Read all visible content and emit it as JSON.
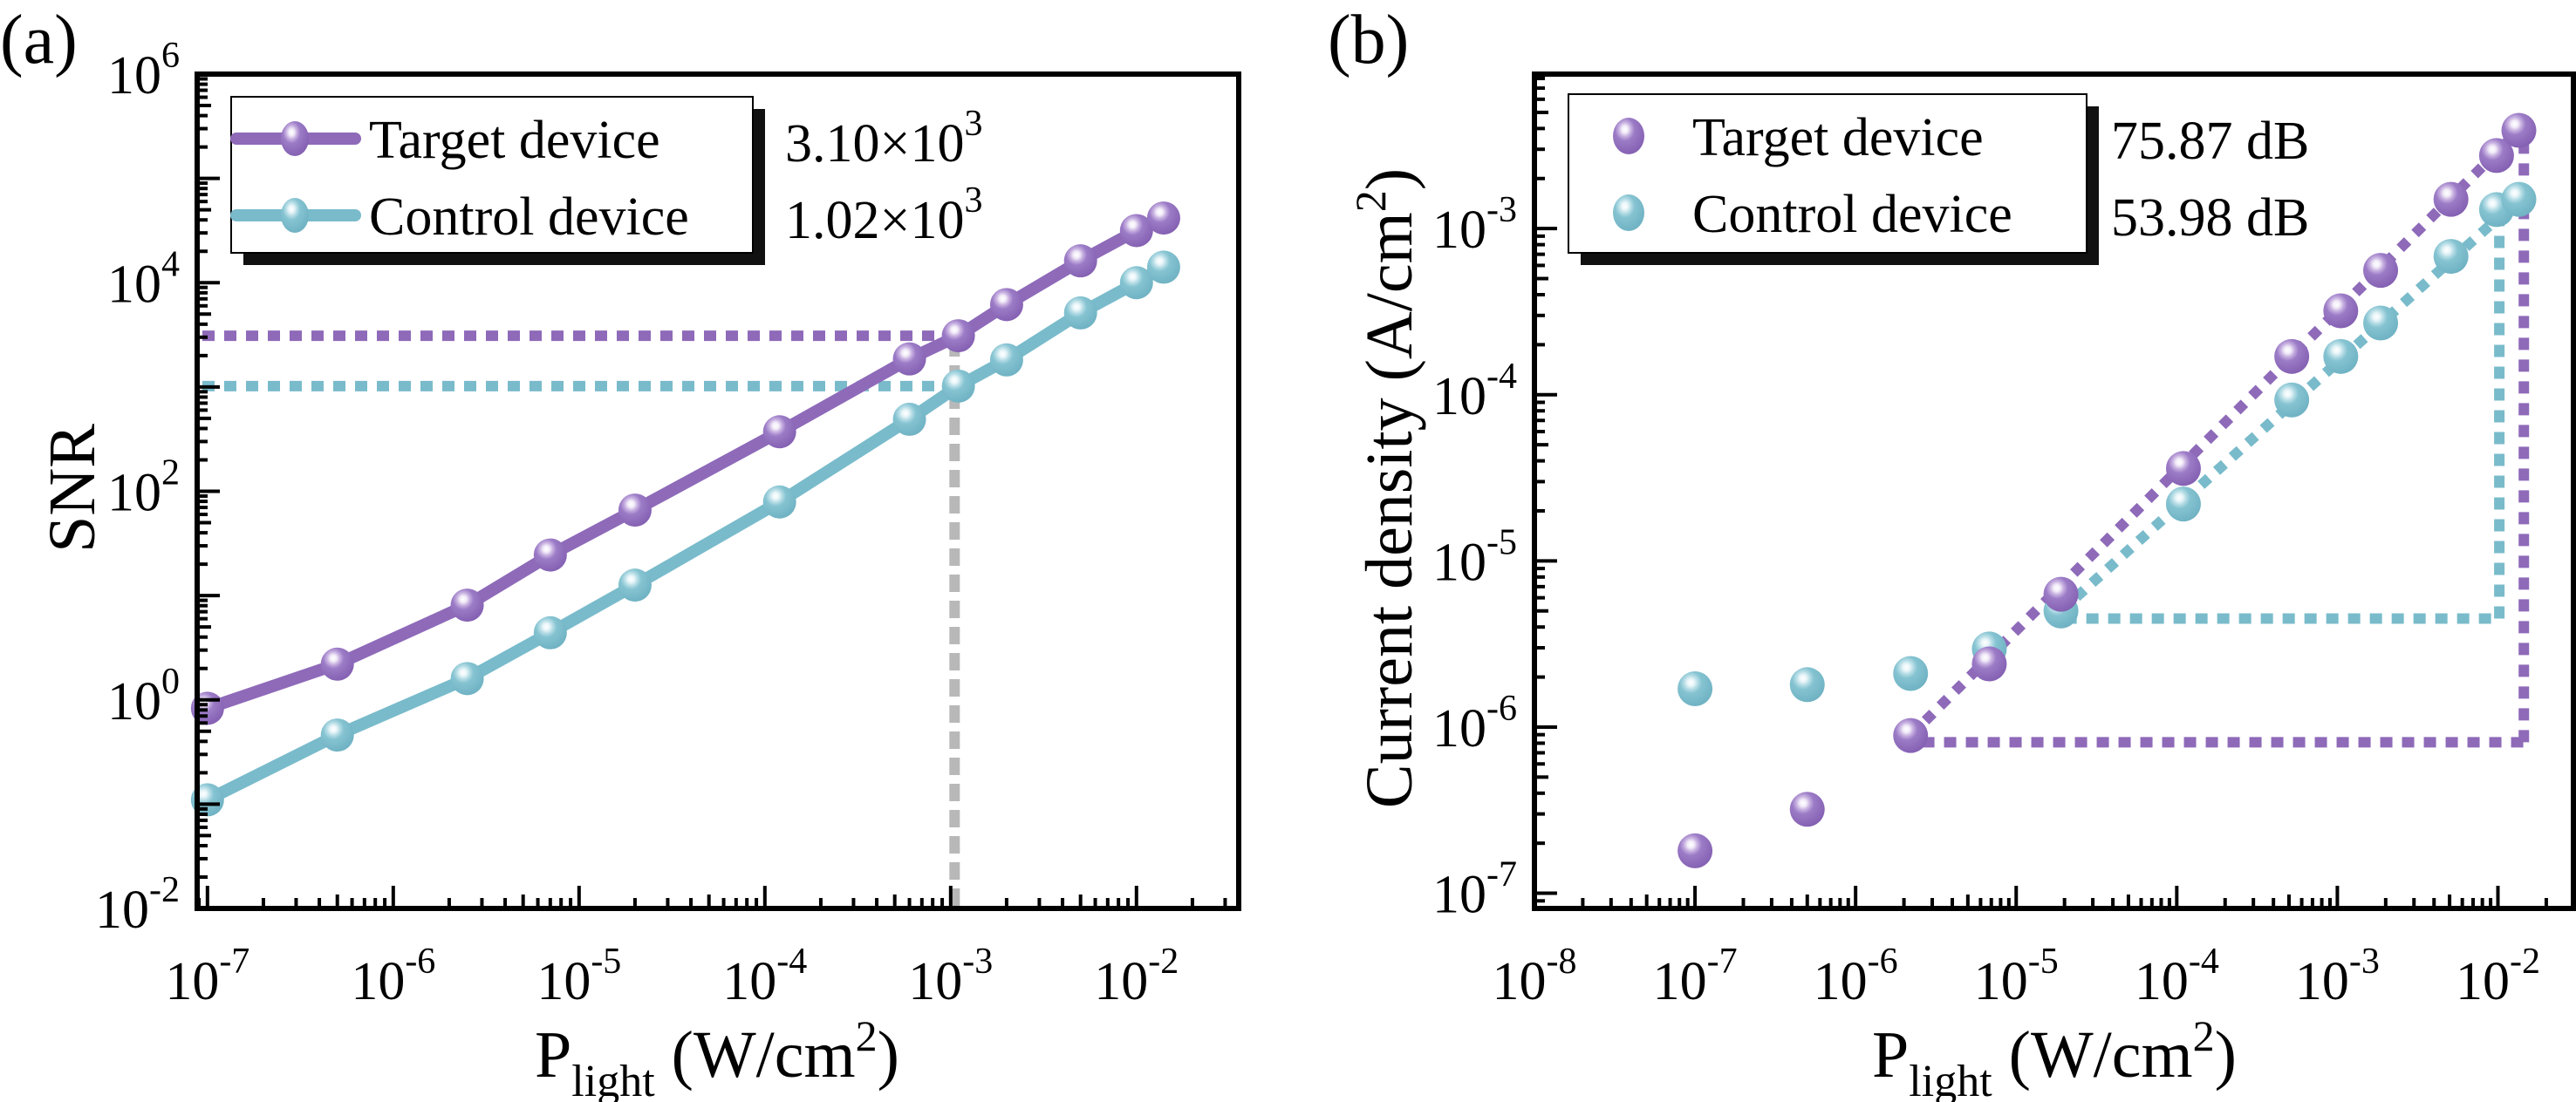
{
  "figure": {
    "panels": [
      {
        "label": "(a)"
      },
      {
        "label": "(b)"
      }
    ]
  },
  "colors": {
    "target": "#8E6AB9",
    "control": "#79BBCB",
    "guide_gray": "#B8B8B8",
    "axis": "#000000"
  },
  "chart_data": [
    {
      "id": "a",
      "panel_label": "(a)",
      "type": "line",
      "title": "",
      "xlabel": "P_light (W/cm^2)",
      "xlabel_main": "P",
      "xlabel_sub": "light",
      "xlabel_unit": " (W/cm",
      "xlabel_unit_sup": "2",
      "xlabel_close": ")",
      "ylabel": "SNR",
      "xscale": "log",
      "yscale": "log",
      "xlim": [
        8.8e-08,
        0.0355
      ],
      "ylim": [
        0.01,
        1000000
      ],
      "x_ticks": [
        {
          "base": "10",
          "exp": "-7",
          "value": 1e-07
        },
        {
          "base": "10",
          "exp": "-6",
          "value": 1e-06
        },
        {
          "base": "10",
          "exp": "-5",
          "value": 1e-05
        },
        {
          "base": "10",
          "exp": "-4",
          "value": 0.0001
        },
        {
          "base": "10",
          "exp": "-3",
          "value": 0.001
        },
        {
          "base": "10",
          "exp": "-2",
          "value": 0.01
        }
      ],
      "y_ticks": [
        {
          "base": "10",
          "exp": "6",
          "value": 1000000.0
        },
        {
          "base": "10",
          "exp": "4",
          "value": 10000.0
        },
        {
          "base": "10",
          "exp": "2",
          "value": 100.0
        },
        {
          "base": "10",
          "exp": "0",
          "value": 1
        },
        {
          "base": "10",
          "exp": "-2",
          "value": 0.01
        }
      ],
      "grid": false,
      "legend": {
        "placement": "top-left",
        "entries": [
          {
            "name": "Target device",
            "style": "line-marker",
            "color_key": "target",
            "annotation": "3.10×10",
            "annotation_sup": "3"
          },
          {
            "name": "Control device",
            "style": "line-marker",
            "color_key": "control",
            "annotation": "1.02×10",
            "annotation_sup": "3"
          }
        ]
      },
      "x": [
        1e-07,
        5e-07,
        2.5e-06,
        7e-06,
        2e-05,
        0.00012,
        0.0006,
        0.0011,
        0.002,
        0.005,
        0.01,
        0.014
      ],
      "series": [
        {
          "name": "Target device",
          "color_key": "target",
          "values": [
            0.83,
            2.2,
            8.1,
            24.5,
            66,
            372,
            1860,
            3100,
            6170,
            16200,
            31600,
            41700
          ]
        },
        {
          "name": "Control device",
          "color_key": "control",
          "values": [
            0.11,
            0.46,
            1.6,
            4.4,
            12.6,
            79,
            490,
            1020,
            1820,
            5130,
            10000,
            14100
          ]
        }
      ],
      "guides": [
        {
          "kind": "hline",
          "color_key": "target",
          "y": 3100,
          "x_from": 8.8e-08,
          "x_to": 0.0011
        },
        {
          "kind": "hline",
          "color_key": "control",
          "y": 1020,
          "x_from": 8.8e-08,
          "x_to": 0.0011
        },
        {
          "kind": "vline",
          "color_key": "guide_gray",
          "x": 0.00105,
          "y_from": 0.01,
          "y_to": 3100
        }
      ]
    },
    {
      "id": "b",
      "panel_label": "(b)",
      "type": "scatter",
      "title": "",
      "xlabel": "P_light (W/cm^2)",
      "xlabel_main": "P",
      "xlabel_sub": "light",
      "xlabel_unit": " (W/cm",
      "xlabel_unit_sup": "2",
      "xlabel_close": ")",
      "ylabel": "Current density (A/cm^2)",
      "ylabel_main": "Current density (A/cm",
      "ylabel_sup": "2",
      "ylabel_close": ")",
      "xscale": "log",
      "yscale": "log",
      "xlim": [
        1e-08,
        0.0295
      ],
      "ylim": [
        8.1e-08,
        0.0085
      ],
      "x_ticks": [
        {
          "base": "10",
          "exp": "-8",
          "value": 1e-08
        },
        {
          "base": "10",
          "exp": "-7",
          "value": 1e-07
        },
        {
          "base": "10",
          "exp": "-6",
          "value": 1e-06
        },
        {
          "base": "10",
          "exp": "-5",
          "value": 1e-05
        },
        {
          "base": "10",
          "exp": "-4",
          "value": 0.0001
        },
        {
          "base": "10",
          "exp": "-3",
          "value": 0.001
        },
        {
          "base": "10",
          "exp": "-2",
          "value": 0.01
        }
      ],
      "y_ticks": [
        {
          "base": "10",
          "exp": "-3",
          "value": 0.001
        },
        {
          "base": "10",
          "exp": "-4",
          "value": 0.0001
        },
        {
          "base": "10",
          "exp": "-5",
          "value": 1e-05
        },
        {
          "base": "10",
          "exp": "-6",
          "value": 1e-06
        },
        {
          "base": "10",
          "exp": "-7",
          "value": 1e-07
        }
      ],
      "grid": false,
      "legend": {
        "placement": "top-left",
        "entries": [
          {
            "name": "Target device",
            "style": "marker",
            "color_key": "target",
            "annotation": "75.87 dB",
            "annotation_sup": ""
          },
          {
            "name": "Control device",
            "style": "marker",
            "color_key": "control",
            "annotation": "53.98 dB",
            "annotation_sup": ""
          }
        ]
      },
      "x": [
        1e-07,
        5e-07,
        2.2e-06,
        6.8e-06,
        1.9e-05,
        0.00011,
        0.00052,
        0.00105,
        0.00186,
        0.0051,
        0.0098,
        0.0135
      ],
      "series": [
        {
          "name": "Target device",
          "color_key": "target",
          "values": [
            1.8e-07,
            3.2e-07,
            8.9e-07,
            2.4e-06,
            6.3e-06,
            3.6e-05,
            0.00017,
            0.00032,
            0.00056,
            0.0015,
            0.00275,
            0.0039
          ]
        },
        {
          "name": "Control device",
          "color_key": "control",
          "values": [
            1.7e-06,
            1.8e-06,
            2.1e-06,
            2.95e-06,
            5e-06,
            2.2e-05,
            9.3e-05,
            0.00017,
            0.00027,
            0.00068,
            0.0013,
            0.0015
          ]
        }
      ],
      "guides": [
        {
          "kind": "segment",
          "color_key": "target",
          "x1": 2.2e-06,
          "y1": 8.9e-07,
          "x2": 0.0135,
          "y2": 0.0039
        },
        {
          "kind": "segment",
          "color_key": "control",
          "x1": 1.9e-05,
          "y1": 5e-06,
          "x2": 0.0135,
          "y2": 0.0015
        },
        {
          "kind": "hline",
          "color_key": "target",
          "y": 8.1e-07,
          "x_from": 2.6e-06,
          "x_to": 0.0145
        },
        {
          "kind": "vline",
          "color_key": "target",
          "x": 0.0145,
          "y_from": 8.1e-07,
          "y_to": 0.0036
        },
        {
          "kind": "hline",
          "color_key": "control",
          "y": 4.5e-06,
          "x_from": 2e-05,
          "x_to": 0.0102
        },
        {
          "kind": "vline",
          "color_key": "control",
          "x": 0.0102,
          "y_from": 4.5e-06,
          "y_to": 0.00125
        }
      ]
    }
  ]
}
